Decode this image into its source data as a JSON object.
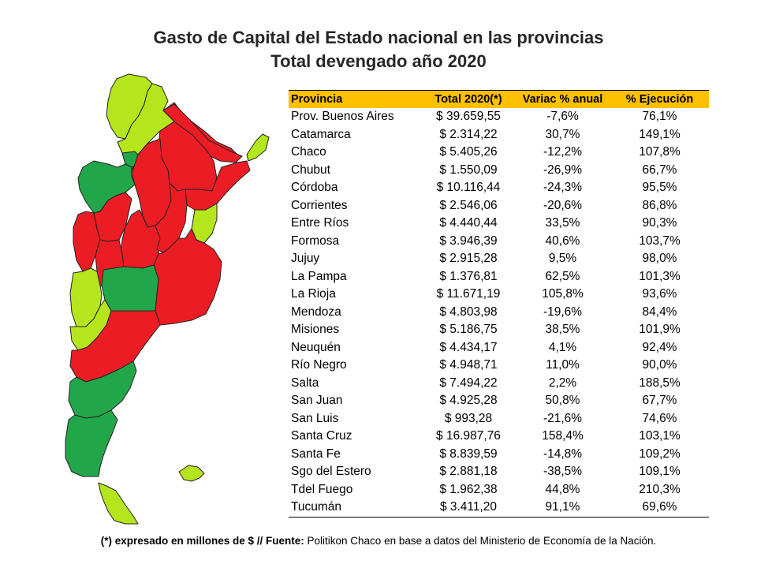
{
  "title_line1": "Gasto de Capital del Estado nacional en las provincias",
  "title_line2": "Total devengado año 2020",
  "table": {
    "headers": [
      "Provincia",
      "Total 2020(*)",
      "Variac % anual",
      "% Ejecución"
    ],
    "rows": [
      [
        "Prov. Buenos Aires",
        "$ 39.659,55",
        "-7,6%",
        "76,1%"
      ],
      [
        "Catamarca",
        "$ 2.314,22",
        "30,7%",
        "149,1%"
      ],
      [
        "Chaco",
        "$ 5.405,26",
        "-12,2%",
        "107,8%"
      ],
      [
        "Chubut",
        "$ 1.550,09",
        "-26,9%",
        "66,7%"
      ],
      [
        "Córdoba",
        "$ 10.116,44",
        "-24,3%",
        "95,5%"
      ],
      [
        "Corrientes",
        "$ 2.546,06",
        "-20,6%",
        "86,8%"
      ],
      [
        "Entre Ríos",
        "$ 4.440,44",
        "33,5%",
        "90,3%"
      ],
      [
        "Formosa",
        "$ 3.946,39",
        "40,6%",
        "103,7%"
      ],
      [
        "Jujuy",
        "$ 2.915,28",
        "9,5%",
        "98,0%"
      ],
      [
        "La Pampa",
        "$ 1.376,81",
        "62,5%",
        "101,3%"
      ],
      [
        "La Rioja",
        "$ 11.671,19",
        "105,8%",
        "93,6%"
      ],
      [
        "Mendoza",
        "$ 4.803,98",
        "-19,6%",
        "84,4%"
      ],
      [
        "Misiones",
        "$ 5.186,75",
        "38,5%",
        "101,9%"
      ],
      [
        "Neuquén",
        "$ 4.434,17",
        "4,1%",
        "92,4%"
      ],
      [
        "Río Negro",
        "$ 4.948,71",
        "11,0%",
        "90,0%"
      ],
      [
        "Salta",
        "$ 7.494,22",
        "2,2%",
        "188,5%"
      ],
      [
        "San Juan",
        "$ 4.925,28",
        "50,8%",
        "67,7%"
      ],
      [
        "San Luis",
        "$ 993,28",
        "-21,6%",
        "74,6%"
      ],
      [
        "Santa Cruz",
        "$ 16.987,76",
        "158,4%",
        "103,1%"
      ],
      [
        "Santa Fe",
        "$ 8.839,59",
        "-14,8%",
        "109,2%"
      ],
      [
        "Sgo del Estero",
        "$ 2.881,18",
        "-38,5%",
        "109,1%"
      ],
      [
        "Tdel Fuego",
        "$ 1.962,38",
        "44,8%",
        "210,3%"
      ],
      [
        "Tucumán",
        "$ 3.411,20",
        "91,1%",
        "69,6%"
      ]
    ]
  },
  "footer": {
    "bold": "(*) expresado en millones de $ // Fuente:",
    "normal": " Politikon Chaco en base a datos del Ministerio de Economía de la Nación."
  },
  "map_colors": {
    "red": "#EC1C24",
    "green": "#22A64A",
    "lime": "#B5E61D",
    "header": "#FFC000"
  }
}
